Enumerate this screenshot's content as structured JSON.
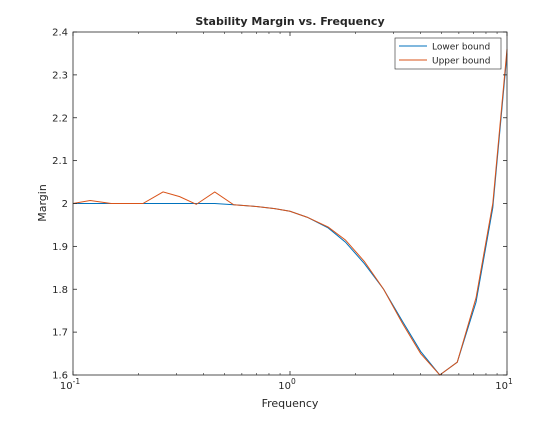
{
  "chart_data": {
    "type": "line",
    "title": "Stability Margin vs. Frequency",
    "xlabel": "Frequency",
    "ylabel": "Margin",
    "xscale": "log",
    "xlim": [
      0.1,
      10
    ],
    "ylim": [
      1.6,
      2.4
    ],
    "x_ticks": [
      {
        "value": 0.1,
        "base": "10",
        "exp": "-1"
      },
      {
        "value": 1,
        "base": "10",
        "exp": "0"
      },
      {
        "value": 10,
        "base": "10",
        "exp": "1"
      }
    ],
    "y_ticks": [
      {
        "value": 1.6,
        "label": "1.6"
      },
      {
        "value": 1.7,
        "label": "1.7"
      },
      {
        "value": 1.8,
        "label": "1.8"
      },
      {
        "value": 1.9,
        "label": "1.9"
      },
      {
        "value": 2.0,
        "label": "2"
      },
      {
        "value": 2.1,
        "label": "2.1"
      },
      {
        "value": 2.2,
        "label": "2.2"
      },
      {
        "value": 2.3,
        "label": "2.3"
      },
      {
        "value": 2.4,
        "label": "2.4"
      }
    ],
    "grid": false,
    "legend_position": "top-right",
    "series": [
      {
        "name": "Lower bound",
        "color": "#0072BD",
        "points": [
          [
            0.1,
            2.0
          ],
          [
            0.12,
            2.0
          ],
          [
            0.15,
            2.0
          ],
          [
            0.21,
            2.0
          ],
          [
            0.26,
            2.0
          ],
          [
            0.31,
            2.0
          ],
          [
            0.37,
            2.0
          ],
          [
            0.45,
            2.0
          ],
          [
            0.55,
            1.997
          ],
          [
            0.7,
            1.993
          ],
          [
            0.85,
            1.988
          ],
          [
            1.0,
            1.982
          ],
          [
            1.2,
            1.968
          ],
          [
            1.5,
            1.943
          ],
          [
            1.8,
            1.91
          ],
          [
            2.2,
            1.86
          ],
          [
            2.7,
            1.8
          ],
          [
            3.3,
            1.725
          ],
          [
            4.0,
            1.655
          ],
          [
            4.9,
            1.6
          ],
          [
            5.9,
            1.63
          ],
          [
            7.2,
            1.77
          ],
          [
            8.6,
            1.99
          ],
          [
            10.0,
            2.35
          ]
        ]
      },
      {
        "name": "Upper bound",
        "color": "#D95319",
        "points": [
          [
            0.1,
            2.0
          ],
          [
            0.12,
            2.007
          ],
          [
            0.15,
            2.0
          ],
          [
            0.21,
            2.0
          ],
          [
            0.26,
            2.027
          ],
          [
            0.31,
            2.016
          ],
          [
            0.37,
            1.998
          ],
          [
            0.45,
            2.027
          ],
          [
            0.55,
            1.997
          ],
          [
            0.7,
            1.993
          ],
          [
            0.85,
            1.988
          ],
          [
            1.0,
            1.982
          ],
          [
            1.2,
            1.968
          ],
          [
            1.5,
            1.945
          ],
          [
            1.8,
            1.915
          ],
          [
            2.2,
            1.865
          ],
          [
            2.7,
            1.8
          ],
          [
            3.3,
            1.72
          ],
          [
            4.0,
            1.65
          ],
          [
            4.9,
            1.6
          ],
          [
            5.9,
            1.63
          ],
          [
            7.2,
            1.78
          ],
          [
            8.6,
            2.0
          ],
          [
            10.0,
            2.36
          ]
        ]
      }
    ]
  }
}
